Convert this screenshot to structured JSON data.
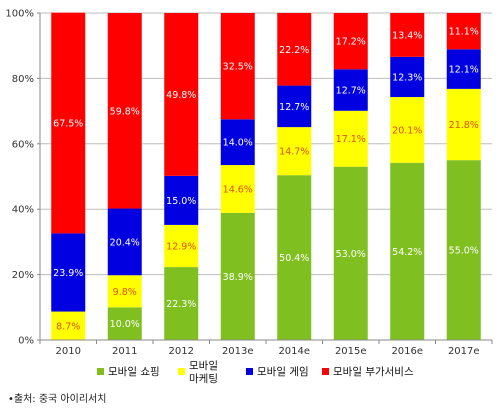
{
  "chart_data": {
    "type": "bar",
    "stacked": true,
    "categories": [
      "2010",
      "2011",
      "2012",
      "2013e",
      "2014e",
      "2015e",
      "2016e",
      "2017e"
    ],
    "series": [
      {
        "name": "모바일 쇼핑",
        "color": "#7fbf1f",
        "label_color": "#ffffff",
        "values": [
          0,
          10.0,
          22.3,
          38.9,
          50.4,
          53.0,
          54.2,
          55.0
        ]
      },
      {
        "name": "모바일 마케팅",
        "color": "#ffff00",
        "label_color": "#e05000",
        "values": [
          8.7,
          9.8,
          12.9,
          14.6,
          14.7,
          17.1,
          20.1,
          21.8
        ]
      },
      {
        "name": "모바일 게임",
        "color": "#0000e0",
        "label_color": "#ffffff",
        "values": [
          23.9,
          20.4,
          15.0,
          14.0,
          12.7,
          12.7,
          12.3,
          12.1
        ]
      },
      {
        "name": "모바일 부가서비스",
        "color": "#ff0000",
        "label_color": "#ffffff",
        "values": [
          67.5,
          59.8,
          49.8,
          32.5,
          22.2,
          17.2,
          13.4,
          11.1
        ]
      }
    ],
    "value_labels": [
      [
        "",
        "10.0%",
        "22.3%",
        "38.9%",
        "50.4%",
        "53.0%",
        "54.2%",
        "55.0%"
      ],
      [
        "8.7%",
        "9.8%",
        "12.9%",
        "14.6%",
        "14.7%",
        "17.1%",
        "20.1%",
        "21.8%"
      ],
      [
        "23.9%",
        "20.4%",
        "15.0%",
        "14.0%",
        "12.7%",
        "12.7%",
        "12.3%",
        "12.1%"
      ],
      [
        "67.5%",
        "59.8%",
        "49.8%",
        "32.5%",
        "22.2%",
        "17.2%",
        "13.4%",
        "11.1%"
      ]
    ],
    "y_ticks": [
      0,
      20,
      40,
      60,
      80,
      100
    ],
    "y_tick_labels": [
      "0%",
      "20%",
      "40%",
      "60%",
      "80%",
      "100%"
    ],
    "ylim": [
      0,
      100
    ],
    "legend_position": "bottom",
    "legend_labels": [
      [
        "모바일 쇼핑"
      ],
      [
        "모바일",
        "마케팅"
      ],
      [
        "모바일 게임"
      ],
      [
        "모바일 부가서비스"
      ]
    ]
  },
  "source_note": "•출처: 중국 아이리서치"
}
